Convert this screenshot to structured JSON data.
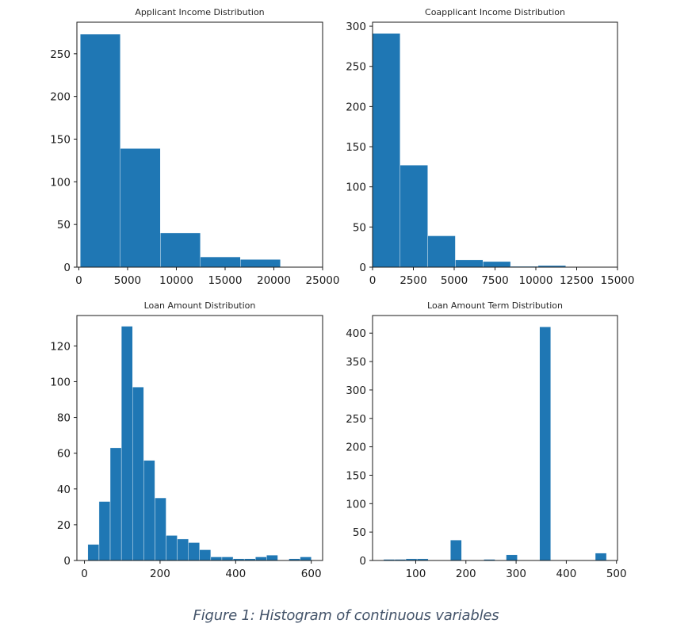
{
  "caption": "Figure 1: Histogram of continuous variables",
  "bar_color": "#1f77b4",
  "chart_data": [
    {
      "type": "bar",
      "histogram": true,
      "title": "Applicant Income Distribution",
      "xlabel": "",
      "ylabel": "",
      "bin_edges": [
        150,
        4253,
        8357,
        12460,
        16564,
        20667
      ],
      "counts": [
        273,
        139,
        40,
        12,
        9
      ],
      "xlim": [
        -200,
        25000
      ],
      "ylim": [
        0,
        287
      ],
      "xticks": [
        0,
        5000,
        10000,
        15000,
        20000,
        25000
      ],
      "xtick_labels": [
        "0",
        "5000",
        "10000",
        "15000",
        "20000",
        "25000"
      ],
      "yticks": [
        0,
        50,
        100,
        150,
        200,
        250
      ],
      "ytick_labels": [
        "0",
        "50",
        "100",
        "150",
        "200",
        "250"
      ],
      "grid": false
    },
    {
      "type": "bar",
      "histogram": true,
      "title": "Coapplicant Income Distribution",
      "xlabel": "",
      "ylabel": "",
      "bin_edges": [
        0,
        1690,
        3380,
        5070,
        6760,
        8450,
        10140,
        11830
      ],
      "counts": [
        291,
        127,
        39,
        9,
        7,
        1,
        2
      ],
      "xlim": [
        0,
        15000
      ],
      "ylim": [
        0,
        305
      ],
      "xticks": [
        0,
        2500,
        5000,
        7500,
        10000,
        12500,
        15000
      ],
      "xtick_labels": [
        "0",
        "2500",
        "5000",
        "7500",
        "10000",
        "12500",
        "15000"
      ],
      "yticks": [
        0,
        50,
        100,
        150,
        200,
        250,
        300
      ],
      "ytick_labels": [
        "0",
        "50",
        "100",
        "150",
        "200",
        "250",
        "300"
      ],
      "grid": false
    },
    {
      "type": "bar",
      "histogram": true,
      "title": "Loan Amount Distribution",
      "xlabel": "",
      "ylabel": "",
      "bin_edges": [
        9,
        38.6,
        68.1,
        97.7,
        127.2,
        156.8,
        186.3,
        215.9,
        245.4,
        275,
        304.5,
        334.1,
        363.6,
        393.2,
        422.7,
        452.3,
        481.8,
        511.4,
        540.9,
        570.5,
        600
      ],
      "counts": [
        9,
        33,
        63,
        131,
        97,
        56,
        35,
        14,
        12,
        10,
        6,
        2,
        2,
        1,
        1,
        2,
        3,
        0,
        1,
        2
      ],
      "xlim": [
        -20,
        630
      ],
      "ylim": [
        0,
        137
      ],
      "xticks": [
        0,
        200,
        400,
        600
      ],
      "xtick_labels": [
        "0",
        "200",
        "400",
        "600"
      ],
      "yticks": [
        0,
        20,
        40,
        60,
        80,
        100,
        120
      ],
      "ytick_labels": [
        "0",
        "20",
        "40",
        "60",
        "80",
        "100",
        "120"
      ],
      "grid": false
    },
    {
      "type": "bar",
      "histogram": true,
      "title": "Loan Amount Term Distribution",
      "xlabel": "",
      "ylabel": "",
      "bin_edges": [
        36,
        58.2,
        80.4,
        102.6,
        124.8,
        147,
        169.2,
        191.4,
        213.6,
        235.8,
        258,
        280.2,
        302.4,
        324.6,
        346.8,
        369,
        391.2,
        413.4,
        435.6,
        457.8,
        480
      ],
      "counts": [
        2,
        2,
        3,
        3,
        0,
        0,
        36,
        0,
        0,
        2,
        0,
        10,
        0,
        0,
        411,
        0,
        0,
        0,
        0,
        13
      ],
      "xlim": [
        14,
        502
      ],
      "ylim": [
        0,
        431
      ],
      "xticks": [
        100,
        200,
        300,
        400,
        500
      ],
      "xtick_labels": [
        "100",
        "200",
        "300",
        "400",
        "500"
      ],
      "yticks": [
        0,
        50,
        100,
        150,
        200,
        250,
        300,
        350,
        400
      ],
      "ytick_labels": [
        "0",
        "50",
        "100",
        "150",
        "200",
        "250",
        "300",
        "350",
        "400"
      ],
      "grid": false
    }
  ]
}
